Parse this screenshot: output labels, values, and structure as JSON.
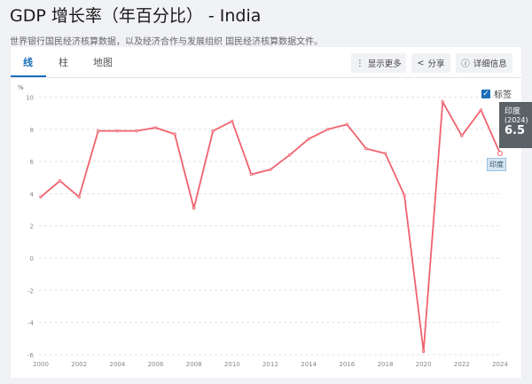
{
  "header": {
    "title": "GDP 增长率（年百分比） - India",
    "subtitle": "世界银行国民经济核算数据，以及经济合作与发展组织 国民经济核算数据文件。"
  },
  "tabs": [
    {
      "label": "线"
    },
    {
      "label": "柱"
    },
    {
      "label": "地图"
    }
  ],
  "buttons": {
    "more": "显示更多",
    "share": "分享",
    "details": "详细信息"
  },
  "labels_checkbox": {
    "label": "标签",
    "checked": true
  },
  "tooltip": {
    "name": "印度",
    "year": "(2024)",
    "value": "6.5"
  },
  "colors": {
    "line": "#f0626e",
    "accent": "#1a6fb8"
  },
  "chart_data": {
    "type": "line",
    "ylabel": "%",
    "ylim": [
      -6,
      10
    ],
    "yticks": [
      -6,
      -4,
      -2,
      0,
      2,
      4,
      6,
      8,
      10
    ],
    "xticks": [
      2000,
      2002,
      2004,
      2006,
      2008,
      2010,
      2012,
      2014,
      2016,
      2018,
      2020,
      2022,
      2024
    ],
    "grid": true,
    "series": [
      {
        "name": "印度",
        "x": [
          2000,
          2001,
          2002,
          2003,
          2004,
          2005,
          2006,
          2007,
          2008,
          2009,
          2010,
          2011,
          2012,
          2013,
          2014,
          2015,
          2016,
          2017,
          2018,
          2019,
          2020,
          2021,
          2022,
          2023,
          2024
        ],
        "values": [
          3.8,
          4.8,
          3.8,
          7.9,
          7.9,
          7.9,
          8.1,
          7.7,
          3.1,
          7.9,
          8.5,
          5.2,
          5.5,
          6.4,
          7.4,
          8.0,
          8.3,
          6.8,
          6.5,
          3.9,
          -5.8,
          9.7,
          7.6,
          9.2,
          6.5
        ]
      }
    ]
  }
}
